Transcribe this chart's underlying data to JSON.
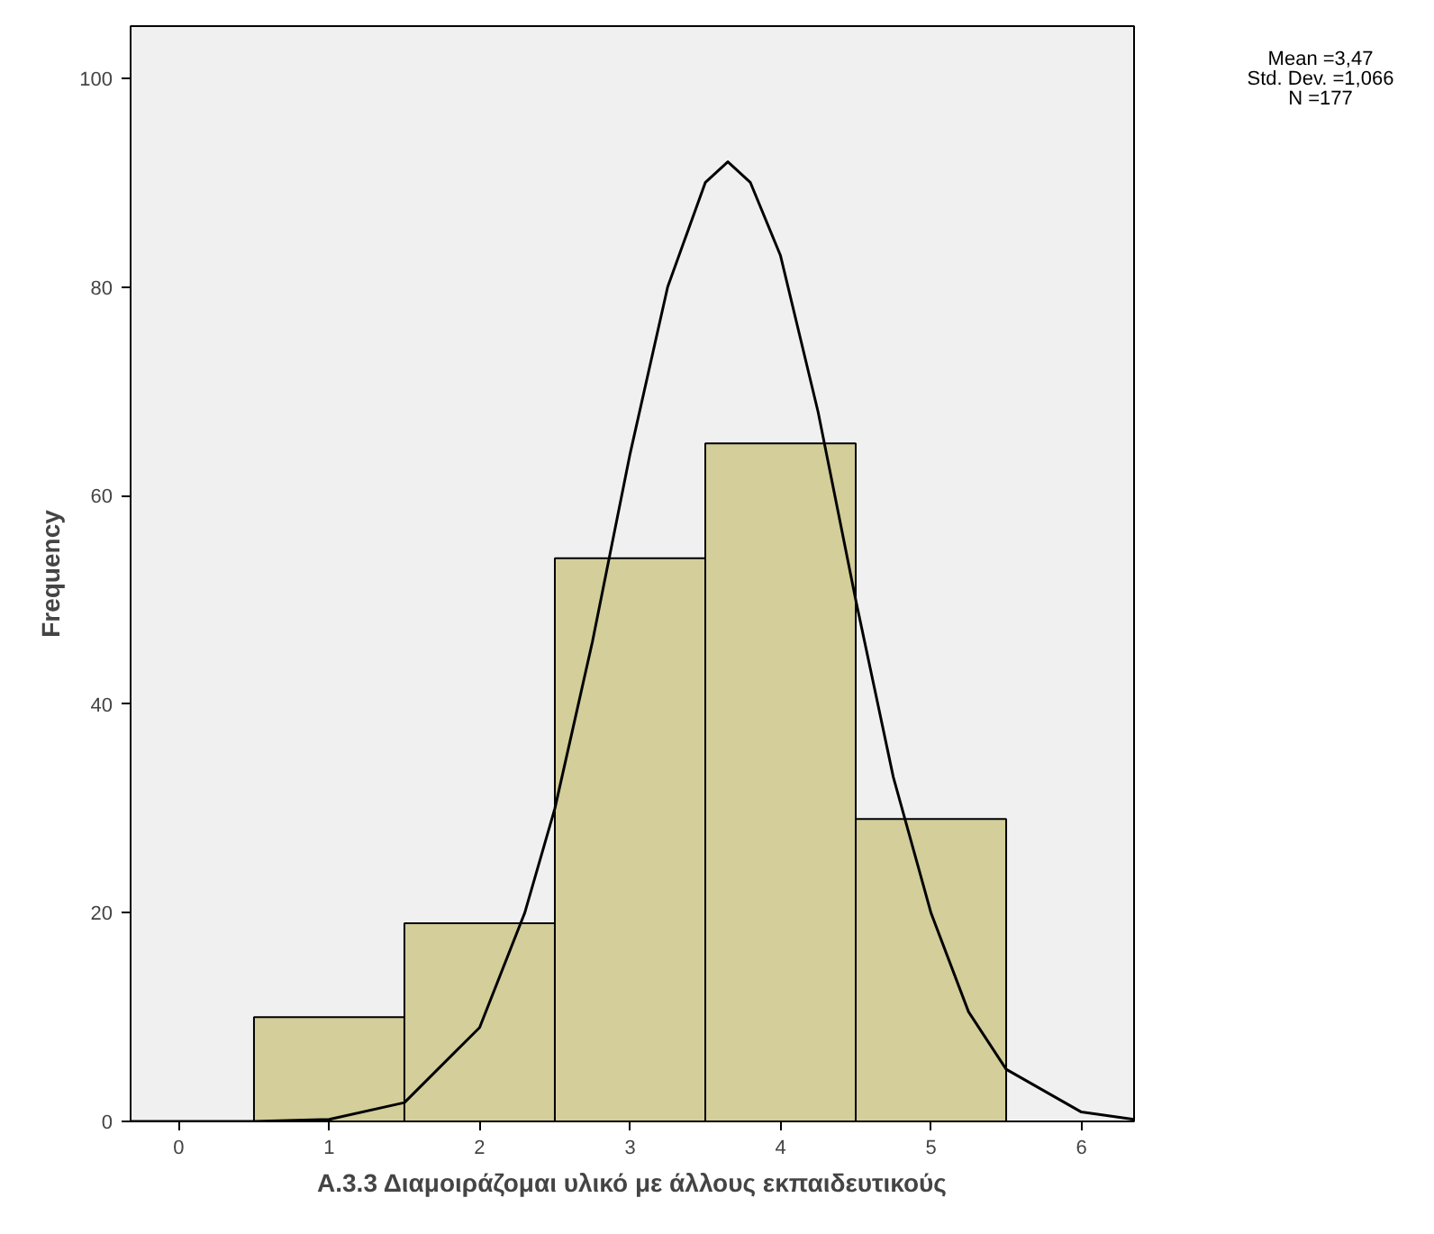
{
  "chart_data": {
    "type": "histogram",
    "xlabel": "Α.3.3 Διαμοιράζομαι υλικό με άλλους εκπαιδευτικούς",
    "ylabel": "Frequency",
    "annotations": [
      "Mean =3,47",
      "Std. Dev. =1,066",
      "N =177"
    ],
    "xlim": [
      -0.32,
      6.35
    ],
    "ylim": [
      0,
      105
    ],
    "xticks": [
      0,
      1,
      2,
      3,
      4,
      5,
      6
    ],
    "yticks": [
      0,
      20,
      40,
      60,
      80,
      100
    ],
    "grid": false,
    "series": [
      {
        "color": "#d3ce9a",
        "bins": [
          0.5,
          1.5,
          2.5,
          3.5,
          4.5,
          5.5
        ],
        "values": [
          10,
          19,
          54,
          65,
          29
        ]
      },
      {
        "type": "line",
        "color": "#000000",
        "x": [
          -0.32,
          0.5,
          1,
          1.5,
          2,
          2.3,
          2.5,
          2.75,
          3,
          3.25,
          3.5,
          3.65,
          3.8,
          4,
          4.25,
          4.5,
          4.75,
          5,
          5.25,
          5.5,
          6,
          6.35
        ],
        "values": [
          0,
          0,
          0.2,
          1.8,
          9,
          20,
          30,
          46,
          64,
          80,
          90,
          92,
          90,
          83,
          68,
          50,
          33,
          20,
          10.5,
          5,
          0.9,
          0.2
        ]
      }
    ]
  }
}
